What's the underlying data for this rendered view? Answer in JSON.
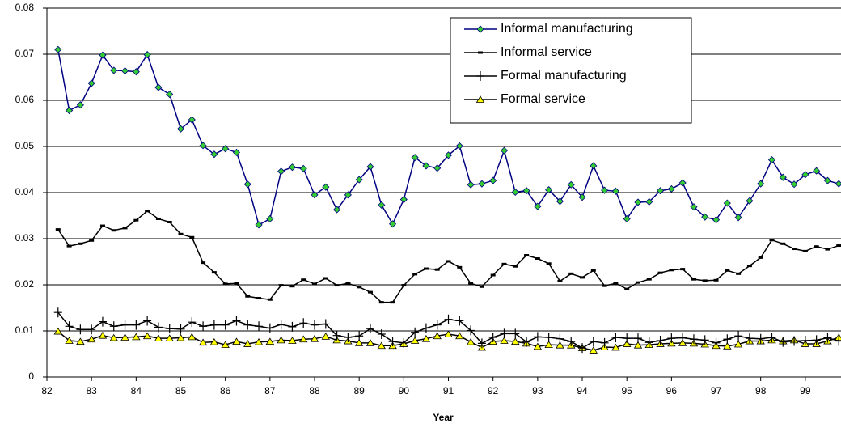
{
  "chart_data": {
    "type": "line",
    "xlabel": "Year",
    "x": [
      82.25,
      82.5,
      82.75,
      83,
      83.25,
      83.5,
      83.75,
      84,
      84.25,
      84.5,
      84.75,
      85,
      85.25,
      85.5,
      85.75,
      86,
      86.25,
      86.5,
      86.75,
      87,
      87.25,
      87.5,
      87.75,
      88,
      88.25,
      88.5,
      88.75,
      89,
      89.25,
      89.5,
      89.75,
      90,
      90.25,
      90.5,
      90.75,
      91,
      91.25,
      91.5,
      91.75,
      92,
      92.25,
      92.5,
      92.75,
      93,
      93.25,
      93.5,
      93.75,
      94,
      94.25,
      94.5,
      94.75,
      95,
      95.25,
      95.5,
      95.75,
      96,
      96.25,
      96.5,
      96.75,
      97,
      97.25,
      97.5,
      97.75,
      98,
      98.25,
      98.5,
      98.75,
      99,
      99.25,
      99.5,
      99.75
    ],
    "xlim": [
      82,
      99.8
    ],
    "xticks": [
      82,
      83,
      84,
      85,
      86,
      87,
      88,
      89,
      90,
      91,
      92,
      93,
      94,
      95,
      96,
      97,
      98,
      99
    ],
    "ylim": [
      0,
      0.08
    ],
    "yticks": [
      0,
      0.01,
      0.02,
      0.03,
      0.04,
      0.05,
      0.06,
      0.07,
      0.08
    ],
    "grid": true,
    "legend": "top-right",
    "series": [
      {
        "name": "Informal manufacturing",
        "color": "#000080",
        "marker": "diamond",
        "marker_color": "#33cc33",
        "values": [
          0.071,
          0.0578,
          0.059,
          0.0637,
          0.0698,
          0.0665,
          0.0664,
          0.0662,
          0.0699,
          0.0628,
          0.0613,
          0.0538,
          0.0558,
          0.0502,
          0.0483,
          0.0495,
          0.0487,
          0.0418,
          0.033,
          0.0343,
          0.0446,
          0.0455,
          0.0452,
          0.0395,
          0.0412,
          0.0363,
          0.0395,
          0.0428,
          0.0456,
          0.0373,
          0.0332,
          0.0385,
          0.0476,
          0.0458,
          0.0453,
          0.0481,
          0.0501,
          0.0417,
          0.0419,
          0.0426,
          0.0491,
          0.0401,
          0.0404,
          0.037,
          0.0406,
          0.0381,
          0.0417,
          0.039,
          0.0458,
          0.0405,
          0.0403,
          0.0343,
          0.0379,
          0.038,
          0.0404,
          0.0408,
          0.0421,
          0.0369,
          0.0347,
          0.0341,
          0.0377,
          0.0346,
          0.0382,
          0.0419,
          0.0471,
          0.0433,
          0.0418,
          0.0439,
          0.0447,
          0.0426,
          0.0419
        ]
      },
      {
        "name": "Informal service",
        "color": "#000000",
        "marker": "dash",
        "marker_color": "#000000",
        "values": [
          0.032,
          0.0284,
          0.0289,
          0.0296,
          0.0328,
          0.0318,
          0.0323,
          0.034,
          0.036,
          0.0343,
          0.0336,
          0.031,
          0.0303,
          0.0248,
          0.0227,
          0.0202,
          0.0203,
          0.0175,
          0.0171,
          0.0168,
          0.0199,
          0.0197,
          0.0211,
          0.0202,
          0.0214,
          0.0199,
          0.0203,
          0.0195,
          0.0184,
          0.0162,
          0.0162,
          0.0199,
          0.0223,
          0.0235,
          0.0233,
          0.0251,
          0.0238,
          0.0203,
          0.0196,
          0.0221,
          0.0245,
          0.024,
          0.0264,
          0.0257,
          0.0246,
          0.0208,
          0.0224,
          0.0216,
          0.0231,
          0.0198,
          0.0203,
          0.0191,
          0.0205,
          0.0212,
          0.0226,
          0.0232,
          0.0234,
          0.0212,
          0.0209,
          0.021,
          0.0231,
          0.0224,
          0.0241,
          0.0259,
          0.0297,
          0.0289,
          0.0278,
          0.0273,
          0.0283,
          0.0277,
          0.0285
        ]
      },
      {
        "name": "Formal manufacturing",
        "color": "#000000",
        "marker": "plus",
        "marker_color": "#000000",
        "values": [
          0.014,
          0.011,
          0.0103,
          0.0103,
          0.012,
          0.011,
          0.0113,
          0.0113,
          0.0122,
          0.0108,
          0.0105,
          0.0104,
          0.0119,
          0.011,
          0.0113,
          0.0113,
          0.0122,
          0.0113,
          0.011,
          0.0106,
          0.0114,
          0.0109,
          0.0117,
          0.0113,
          0.0115,
          0.009,
          0.0086,
          0.0089,
          0.0105,
          0.0093,
          0.0077,
          0.0074,
          0.0097,
          0.0106,
          0.0113,
          0.0125,
          0.0122,
          0.0101,
          0.0073,
          0.0086,
          0.0094,
          0.0094,
          0.0076,
          0.0087,
          0.0086,
          0.0083,
          0.0077,
          0.0063,
          0.0077,
          0.0074,
          0.0086,
          0.0084,
          0.0084,
          0.0075,
          0.0079,
          0.0084,
          0.0085,
          0.0082,
          0.008,
          0.0074,
          0.0082,
          0.0089,
          0.0084,
          0.0083,
          0.0086,
          0.0076,
          0.0078,
          0.0079,
          0.008,
          0.0085,
          0.0078
        ]
      },
      {
        "name": "Formal service",
        "color": "#000000",
        "marker": "triangle",
        "marker_color": "#ffff00",
        "values": [
          0.0099,
          0.0079,
          0.0077,
          0.0082,
          0.009,
          0.0085,
          0.0086,
          0.0087,
          0.0089,
          0.0084,
          0.0084,
          0.0085,
          0.0087,
          0.0075,
          0.0076,
          0.007,
          0.0077,
          0.0072,
          0.0076,
          0.0077,
          0.008,
          0.0079,
          0.0082,
          0.0083,
          0.0088,
          0.008,
          0.0078,
          0.0074,
          0.0074,
          0.0068,
          0.0068,
          0.0072,
          0.0079,
          0.0083,
          0.0089,
          0.0093,
          0.0089,
          0.0076,
          0.0064,
          0.0077,
          0.0079,
          0.0077,
          0.0073,
          0.0066,
          0.007,
          0.0069,
          0.0069,
          0.0063,
          0.0058,
          0.0065,
          0.0064,
          0.0072,
          0.0069,
          0.007,
          0.0072,
          0.0073,
          0.0074,
          0.0073,
          0.0071,
          0.0068,
          0.0067,
          0.0071,
          0.0078,
          0.0078,
          0.008,
          0.0078,
          0.008,
          0.0072,
          0.0072,
          0.0078,
          0.0086
        ]
      }
    ]
  }
}
